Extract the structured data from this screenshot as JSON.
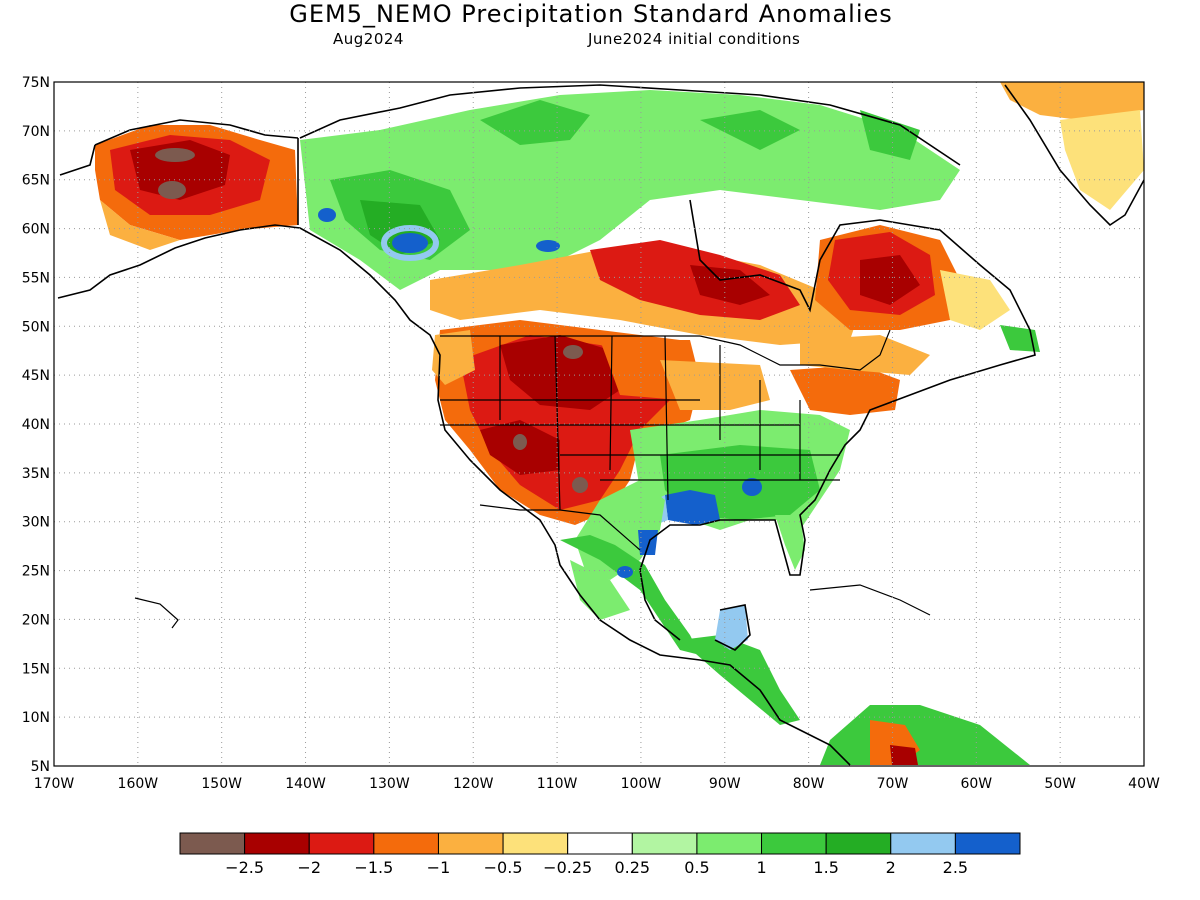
{
  "title": "GEM5_NEMO Precipitation Standard Anomalies",
  "subtitle_left": "Aug2024",
  "subtitle_right": "June2024 initial conditions",
  "map": {
    "lon_range": [
      -170,
      -40
    ],
    "lat_range": [
      5,
      75
    ],
    "lon_ticks": [
      "170W",
      "160W",
      "150W",
      "140W",
      "130W",
      "120W",
      "110W",
      "100W",
      "90W",
      "80W",
      "70W",
      "60W",
      "50W",
      "40W"
    ],
    "lat_ticks": [
      "5N",
      "10N",
      "15N",
      "20N",
      "25N",
      "30N",
      "35N",
      "40N",
      "45N",
      "50N",
      "55N",
      "60N",
      "65N",
      "70N",
      "75N"
    ],
    "gridlines": "dotted",
    "field": "precipitation standard anomaly",
    "regions": [
      {
        "name": "Alaska",
        "lon": -155,
        "lat": 65,
        "category": "below -2.5"
      },
      {
        "name": "Western Alaska",
        "lon": -158,
        "lat": 62,
        "category": "-2 to -1.5"
      },
      {
        "name": "Yukon / British Columbia",
        "lon": -127,
        "lat": 60,
        "category": "1 to 1.5"
      },
      {
        "name": "Northern British Columbia",
        "lon": -128,
        "lat": 59,
        "category": "above 2.5"
      },
      {
        "name": "Northern Rockies",
        "lon": -108,
        "lat": 47,
        "category": "-2.5 to -2"
      },
      {
        "name": "Great Basin",
        "lon": -115,
        "lat": 42,
        "category": "-2 to -1.5"
      },
      {
        "name": "Southwest US",
        "lon": -110,
        "lat": 35,
        "category": "-2.5 to -2"
      },
      {
        "name": "New Mexico",
        "lon": -106,
        "lat": 33,
        "category": "below -2.5"
      },
      {
        "name": "Pacific Northwest",
        "lon": -120,
        "lat": 45,
        "category": "-1.5 to -1"
      },
      {
        "name": "Southeast US",
        "lon": -85,
        "lat": 33,
        "category": "1 to 1.5"
      },
      {
        "name": "Lower Mississippi",
        "lon": -93,
        "lat": 31,
        "category": "above 2.5"
      },
      {
        "name": "Texas Coast",
        "lon": -97,
        "lat": 29,
        "category": "above 2.5"
      },
      {
        "name": "Eastern Mexico",
        "lon": -98,
        "lat": 22,
        "category": "1 to 1.5"
      },
      {
        "name": "Yucatan",
        "lon": -89,
        "lat": 19,
        "category": "2 to 2.5"
      },
      {
        "name": "Ontario / Hudson Bay",
        "lon": -88,
        "lat": 53,
        "category": "-2 to -1.5"
      },
      {
        "name": "Quebec / Labrador",
        "lon": -70,
        "lat": 54,
        "category": "-2.5 to -2"
      },
      {
        "name": "Great Lakes / Northeast",
        "lon": -78,
        "lat": 43,
        "category": "-1.5 to -1"
      },
      {
        "name": "Nunavut",
        "lon": -100,
        "lat": 66,
        "category": "0.5 to 1"
      },
      {
        "name": "Greenland",
        "lon": -45,
        "lat": 68,
        "category": "-0.5 to -0.25"
      },
      {
        "name": "Northern South America",
        "lon": -70,
        "lat": 7,
        "category": "-2 to -1.5"
      }
    ]
  },
  "colorbar": {
    "colors": [
      "#7c5a4f",
      "#a80000",
      "#dc1a13",
      "#f46b0c",
      "#fbb040",
      "#fde17a",
      "#ffffff",
      "#b2f5a2",
      "#7cec6f",
      "#3cc93d",
      "#24ad24",
      "#93c9f0",
      "#1460cc"
    ],
    "labels": [
      "−2.5",
      "−2",
      "−1.5",
      "−1",
      "−0.5",
      "−0.25",
      "0.25",
      "0.5",
      "1",
      "1.5",
      "2",
      "2.5"
    ]
  }
}
